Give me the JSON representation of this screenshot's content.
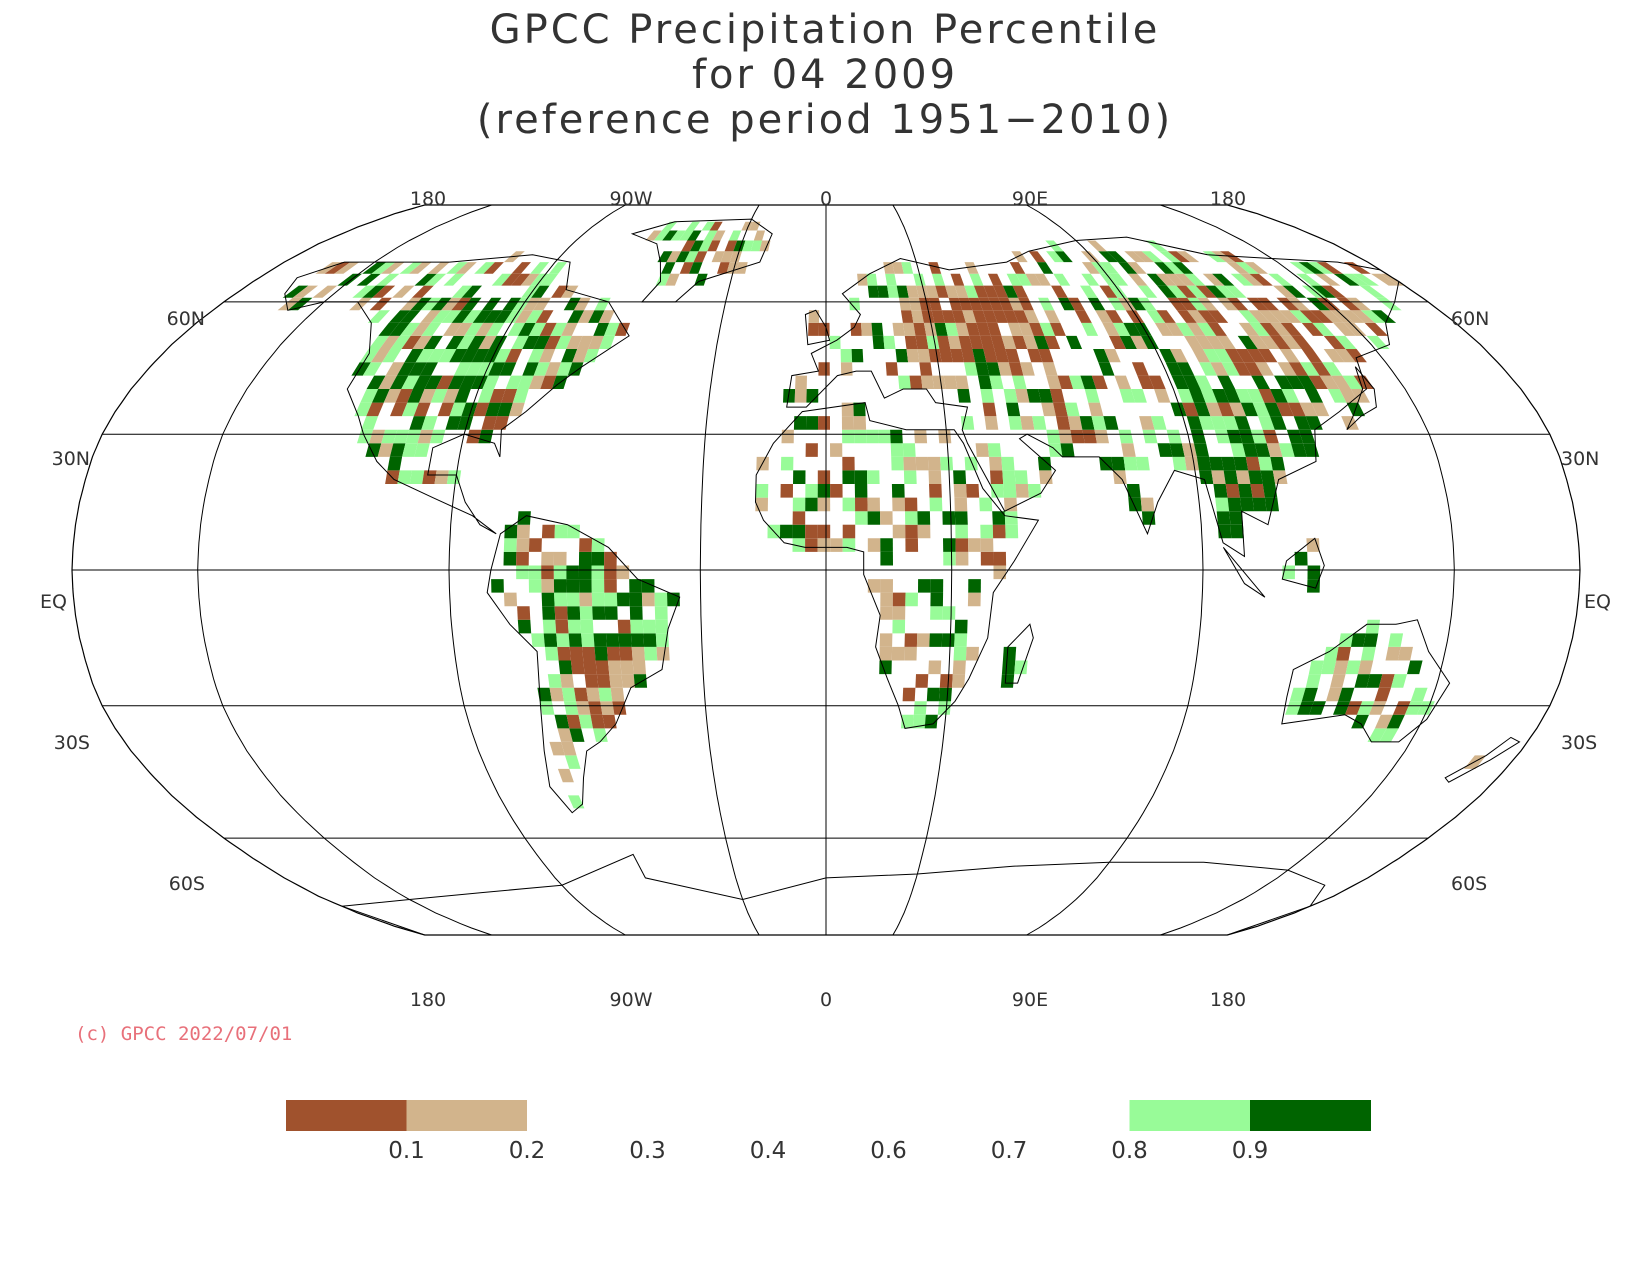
{
  "title": {
    "line1": "GPCC Precipitation Percentile",
    "line2": "for 04 2009",
    "line3": "(reference period 1951−2010)"
  },
  "map": {
    "projection": "Robinson",
    "top_longitude_labels": [
      "180",
      "90W",
      "0",
      "90E",
      "180"
    ],
    "bottom_longitude_labels": [
      "180",
      "90W",
      "0",
      "90E",
      "180"
    ],
    "latitude_labels_left": [
      "60N",
      "30N",
      "EQ",
      "30S",
      "60S"
    ],
    "latitude_labels_right": [
      "60N",
      "30N",
      "EQ",
      "30S",
      "60S"
    ],
    "colors": {
      "below_0_1": "#a0522d",
      "0_1_to_0_2": "#d2b48c",
      "0_8_to_0_9": "#98fb98",
      "above_0_9": "#006400",
      "coastline": "#000000",
      "grid": "#000000"
    }
  },
  "copyright": "(c) GPCC 2022/07/01",
  "legend": {
    "tick_labels": [
      "0.1",
      "0.2",
      "0.3",
      "0.4",
      "0.6",
      "0.7",
      "0.8",
      "0.9"
    ],
    "swatches": [
      {
        "color": "#a0522d",
        "range": "< 0.1"
      },
      {
        "color": "#d2b48c",
        "range": "0.1 - 0.2"
      },
      {
        "color": "#ffffff",
        "range": "0.2 - 0.3"
      },
      {
        "color": "#ffffff",
        "range": "0.3 - 0.4"
      },
      {
        "color": "#ffffff",
        "range": "0.4 - 0.6"
      },
      {
        "color": "#ffffff",
        "range": "0.6 - 0.7"
      },
      {
        "color": "#ffffff",
        "range": "0.7 - 0.8"
      },
      {
        "color": "#98fb98",
        "range": "0.8 - 0.9"
      },
      {
        "color": "#006400",
        "range": "> 0.9"
      }
    ]
  }
}
